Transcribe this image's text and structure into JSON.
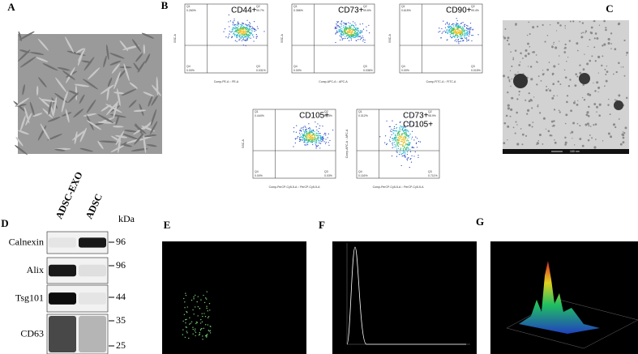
{
  "panel_letters": [
    "A",
    "B",
    "C",
    "D",
    "E",
    "F",
    "G"
  ],
  "flow_plots": [
    {
      "marker": [
        "CD44+"
      ],
      "x_label": "Comp-PE-A :: PE-A",
      "y_label": "SSC-A",
      "quadrants": [
        {
          "name": "Q1",
          "value": "0.260%"
        },
        {
          "name": "Q2",
          "value": "99.7%"
        },
        {
          "name": "Q4",
          "value": "0.00%"
        },
        {
          "name": "Q3",
          "value": "0.031%"
        }
      ]
    },
    {
      "marker": [
        "CD73+"
      ],
      "x_label": "Comp-APC-A :: APC-A",
      "y_label": "SSC-A",
      "quadrants": [
        {
          "name": "Q1",
          "value": "0.356%"
        },
        {
          "name": "Q2",
          "value": "99.6%"
        },
        {
          "name": "Q4",
          "value": "0.00%"
        },
        {
          "name": "Q3",
          "value": "0.036%"
        }
      ]
    },
    {
      "marker": [
        "CD90+"
      ],
      "x_label": "Comp-FITC-A :: FITC-A",
      "y_label": "SSC-A",
      "quadrants": [
        {
          "name": "Q1",
          "value": "0.615%"
        },
        {
          "name": "Q2",
          "value": "99.4%"
        },
        {
          "name": "Q4",
          "value": "0.00%"
        },
        {
          "name": "Q3",
          "value": "0.015%"
        }
      ]
    },
    {
      "marker": [
        "CD105+"
      ],
      "x_label": "Comp-PerCP-Cy5-5-A :: PerCP-Cy5-5-A",
      "y_label": "SSC-A",
      "quadrants": [
        {
          "name": "Q1",
          "value": "0.444%"
        },
        {
          "name": "Q2",
          "value": "99.5%"
        },
        {
          "name": "Q4",
          "value": "0.00%"
        },
        {
          "name": "Q3",
          "value": "0.03%"
        }
      ]
    },
    {
      "marker": [
        "CD73+",
        "CD105+"
      ],
      "x_label": "Comp-PerCP-Cy5-5-A :: PerCP-Cy5-5-A",
      "y_label": "Comp-APC-A :: APC-A",
      "quadrants": [
        {
          "name": "Q1",
          "value": "0.312%"
        },
        {
          "name": "Q2",
          "value": "98.9%"
        },
        {
          "name": "Q4",
          "value": "0.116%"
        },
        {
          "name": "Q3",
          "value": "0.711%"
        }
      ]
    }
  ],
  "tem_scale": "100 nm",
  "western": {
    "columns": [
      "ADSC-EXO",
      "ADSC"
    ],
    "unit": "kDa",
    "rows": [
      {
        "name": "Calnexin",
        "markers": [
          "96"
        ]
      },
      {
        "name": "Alix",
        "markers": [
          "96"
        ]
      },
      {
        "name": "Tsg101",
        "markers": [
          "44"
        ]
      },
      {
        "name": "CD63",
        "markers": [
          "35",
          "25"
        ]
      }
    ]
  }
}
